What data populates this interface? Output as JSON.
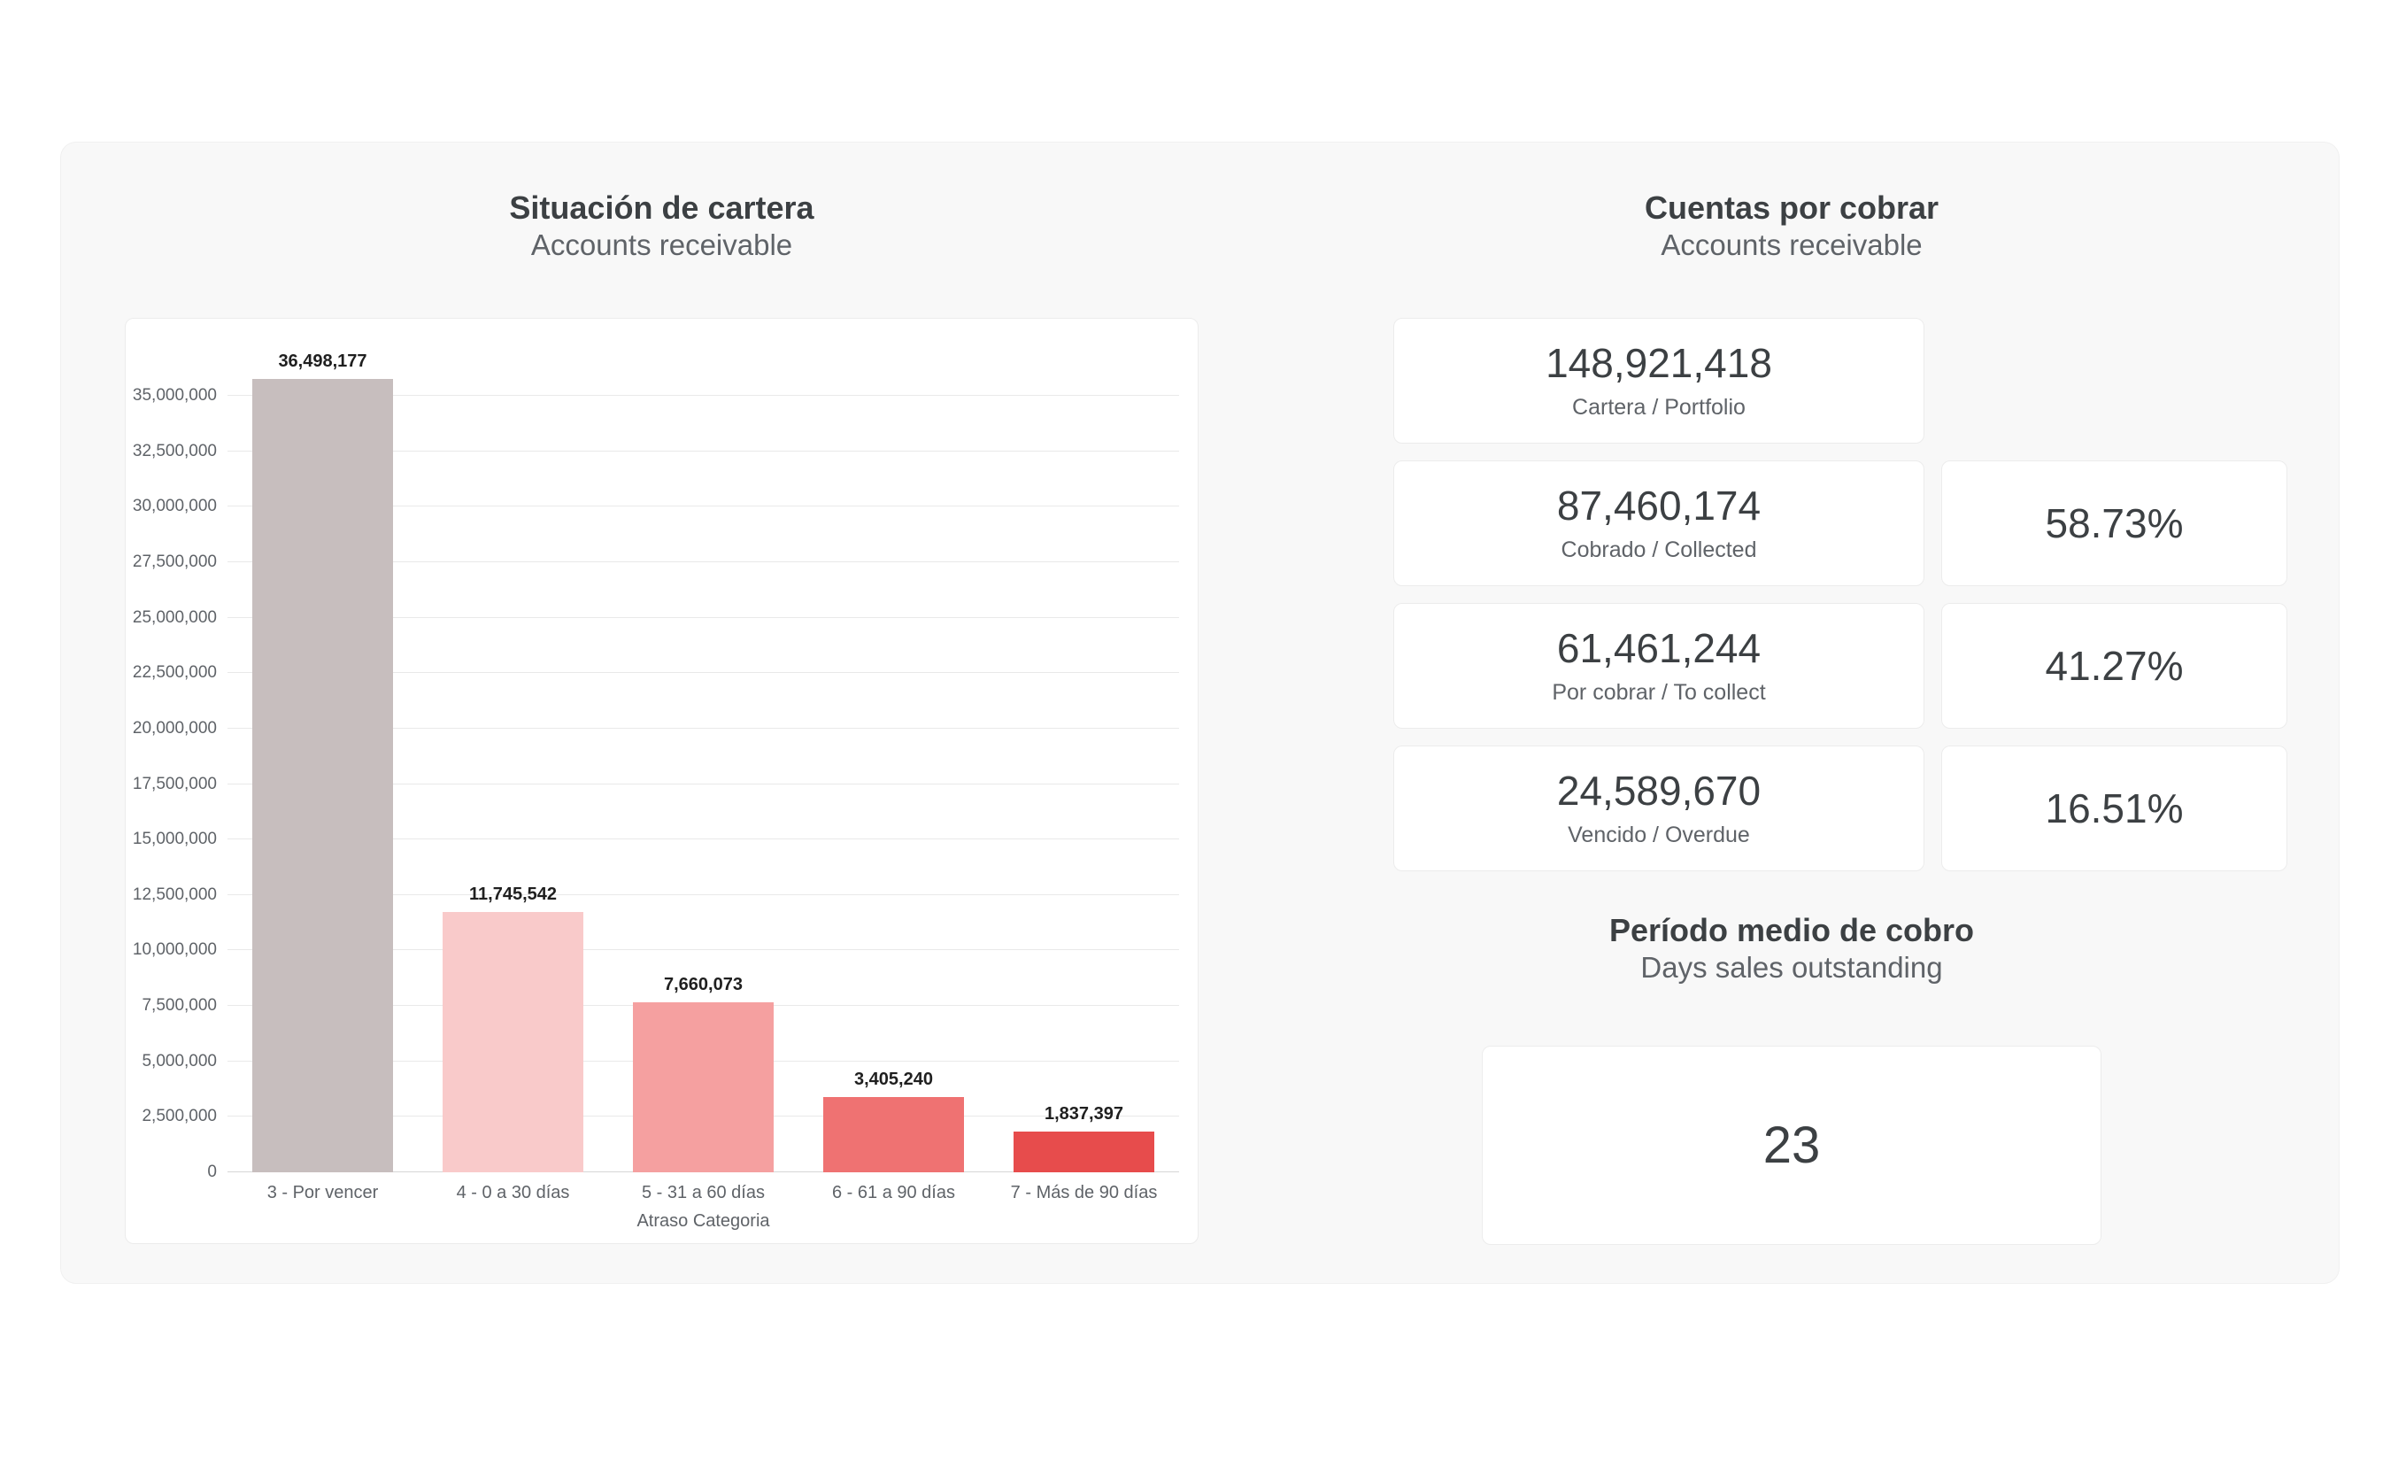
{
  "left_section": {
    "title": "Situación de cartera",
    "subtitle": "Accounts receivable"
  },
  "right_section": {
    "title": "Cuentas por cobrar",
    "subtitle": "Accounts receivable",
    "kpis": [
      {
        "value": "148,921,418",
        "label": "Cartera / Portfolio",
        "percent": null
      },
      {
        "value": "87,460,174",
        "label": "Cobrado / Collected",
        "percent": "58.73%"
      },
      {
        "value": "61,461,244",
        "label": "Por cobrar / To collect",
        "percent": "41.27%"
      },
      {
        "value": "24,589,670",
        "label": "Vencido / Overdue",
        "percent": "16.51%"
      }
    ],
    "dso": {
      "title": "Período medio de cobro",
      "subtitle": "Days sales outstanding",
      "value": "23"
    }
  },
  "chart_data": {
    "type": "bar",
    "title": "Situación de cartera",
    "subtitle": "Accounts receivable",
    "categories": [
      "3 - Por vencer",
      "4 - 0 a 30 días",
      "5 - 31 a 60 días",
      "6 - 61 a 90 días",
      "7 - Más de 90 días"
    ],
    "values": [
      36498177,
      11745542,
      7660073,
      3405240,
      1837397
    ],
    "value_labels": [
      "36,498,177",
      "11,745,542",
      "7,660,073",
      "3,405,240",
      "1,837,397"
    ],
    "bar_colors": [
      "#c7bebe",
      "#f9caca",
      "#f5a0a0",
      "#ef7272",
      "#e74c4c"
    ],
    "xlabel": "Atraso Categoria",
    "ylabel": "",
    "ylim": [
      0,
      37000000
    ],
    "ytick_step": 2500000,
    "ytick_max": 35000000,
    "grid": true,
    "legend": false
  }
}
